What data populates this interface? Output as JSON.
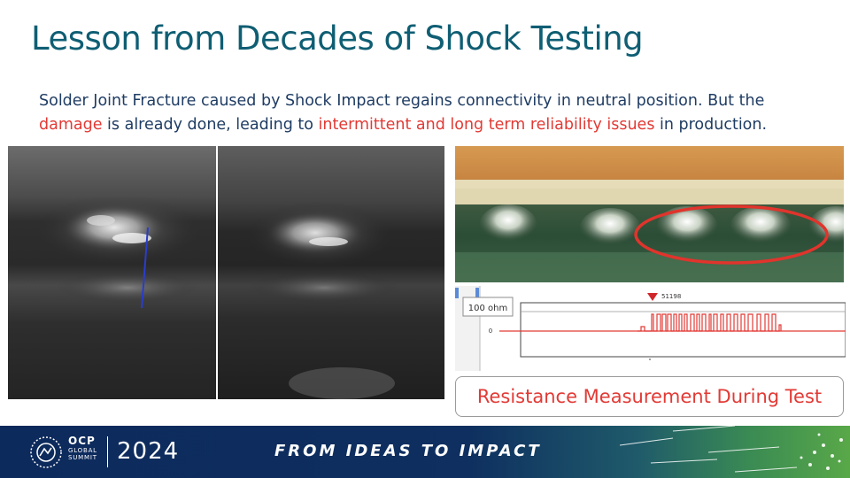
{
  "title": "Lesson from Decades of Shock Testing",
  "subtitle": {
    "part1": "Solder Joint Fracture caused by Shock Impact regains connectivity in neutral position.  But the",
    "damage": "damage",
    "part2": " is already done, leading to ",
    "issues": "intermittent  and long term reliability issues",
    "part3": " in production."
  },
  "chart": {
    "marker_label": "51198",
    "y_label": "100 ohm",
    "zero_label": "0"
  },
  "caption": "Resistance Measurement During Test",
  "footer": {
    "brand": "OCP",
    "brand_sub1": "GLOBAL",
    "brand_sub2": "SUMMIT",
    "year": "2024",
    "tagline": "FROM IDEAS TO IMPACT"
  },
  "colors": {
    "title": "#0f5e73",
    "body_text": "#1f3c63",
    "highlight_red": "#e23a35",
    "footer_bg": "#0d2a5c"
  }
}
